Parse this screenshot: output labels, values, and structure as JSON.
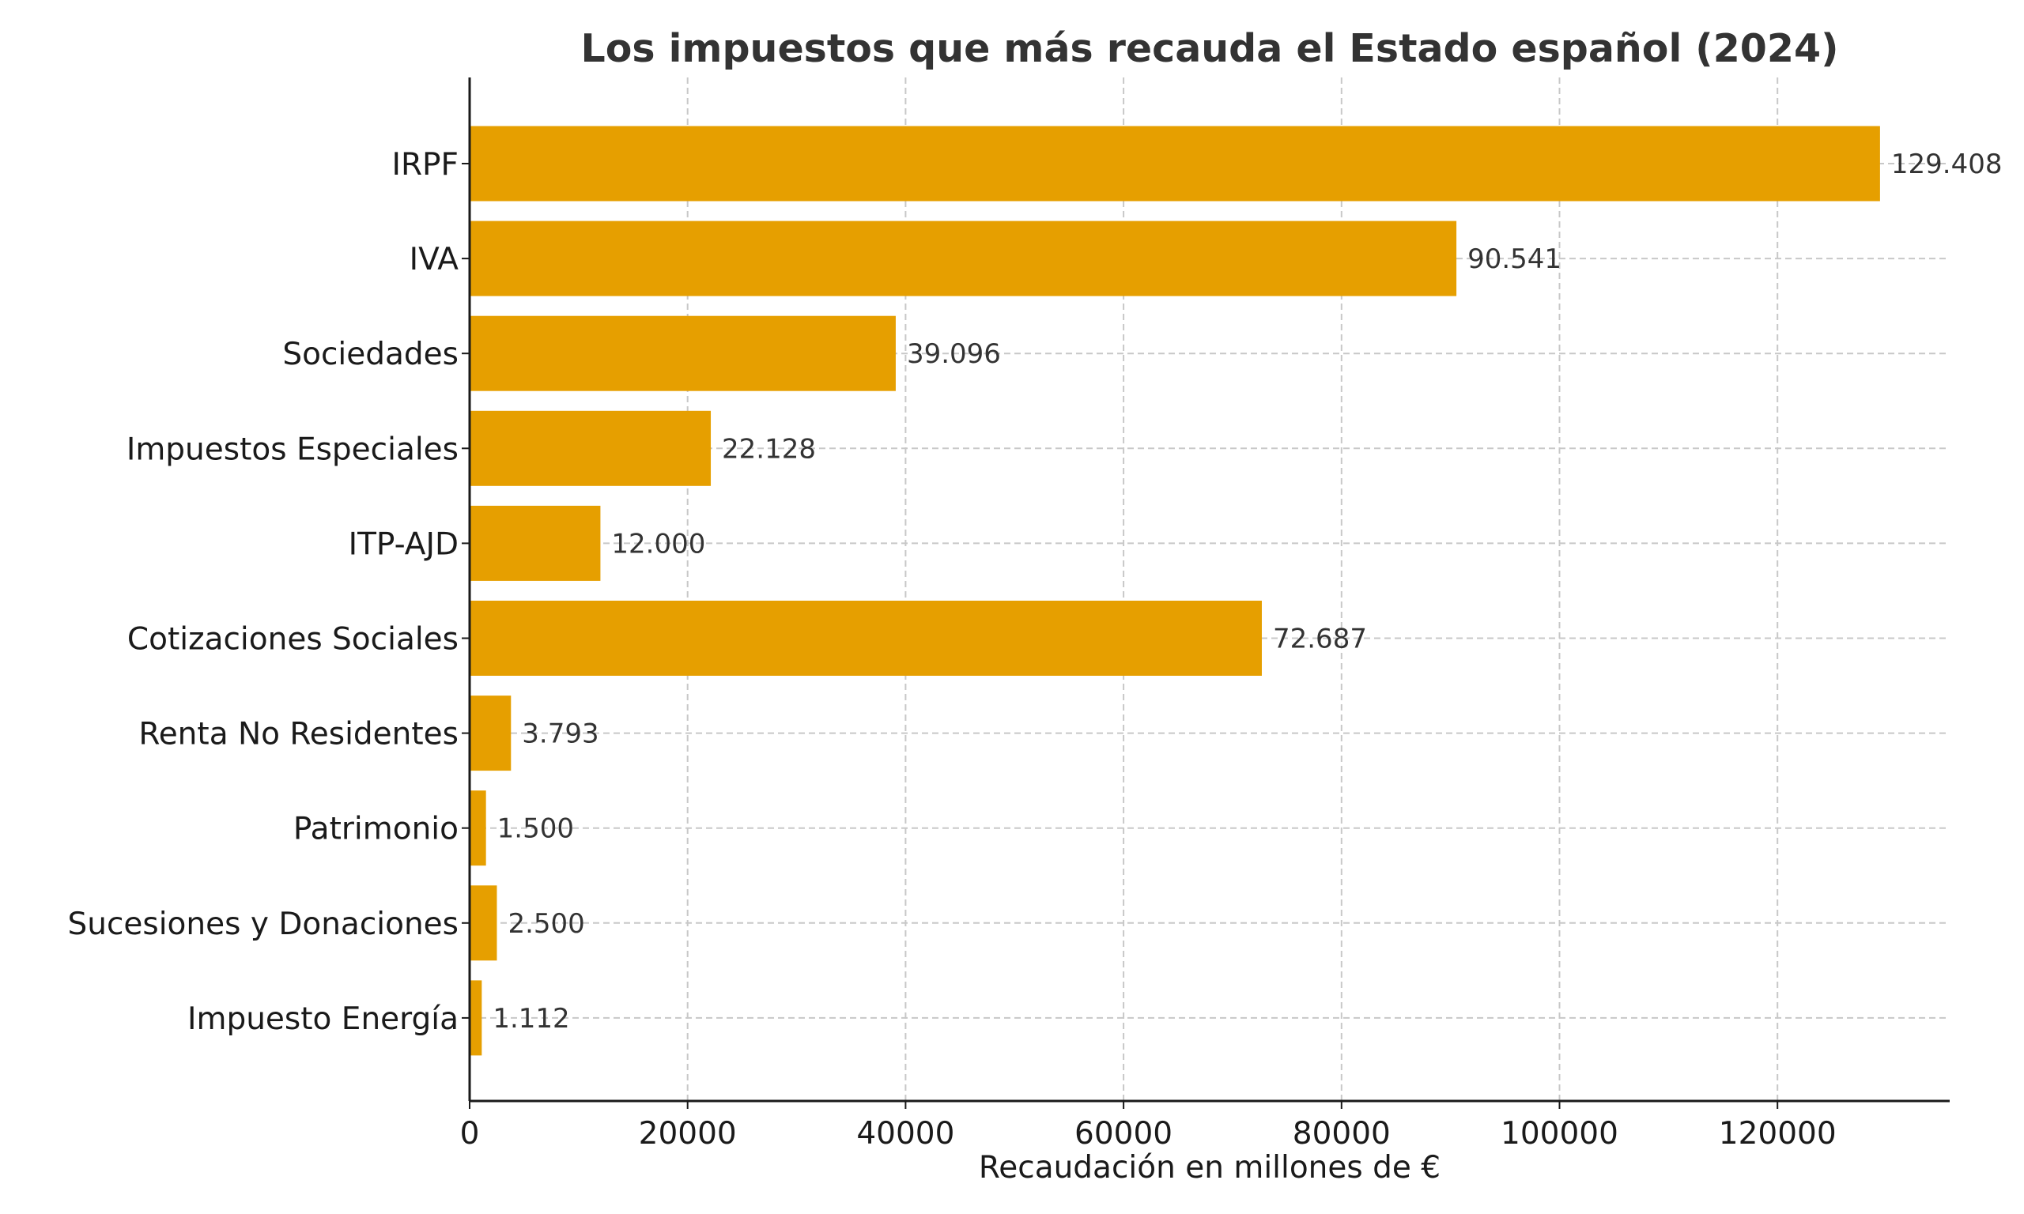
{
  "chart_data": {
    "type": "bar",
    "orientation": "horizontal",
    "title": "Los impuestos que más recauda el Estado español (2024)",
    "xlabel": "Recaudación en millones de €",
    "ylabel": "",
    "categories": [
      "IRPF",
      "IVA",
      "Sociedades",
      "Impuestos Especiales",
      "ITP-AJD",
      "Cotizaciones Sociales",
      "Renta No Residentes",
      "Patrimonio",
      "Sucesiones y Donaciones",
      "Impuesto Energía"
    ],
    "values": [
      129408,
      90541,
      39096,
      22128,
      12000,
      72687,
      3793,
      1500,
      2500,
      1112
    ],
    "data_labels": [
      "129.408",
      "90.541",
      "39.096",
      "22.128",
      "12.000",
      "72.687",
      "3.793",
      "1.500",
      "2.500",
      "1.112"
    ],
    "xlim": [
      0,
      135800
    ],
    "xticks": [
      0,
      20000,
      40000,
      60000,
      80000,
      100000,
      120000
    ],
    "xtick_labels": [
      "0",
      "20000",
      "40000",
      "60000",
      "80000",
      "100000",
      "120000"
    ],
    "grid": true,
    "bar_color": "#E69F00"
  }
}
